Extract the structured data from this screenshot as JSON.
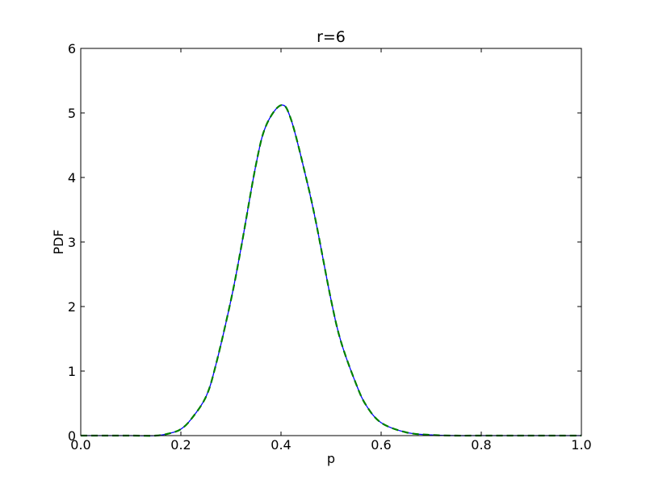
{
  "chart_data": {
    "type": "line",
    "title": "r=6",
    "xlabel": "p",
    "ylabel": "PDF",
    "xlim": [
      0.0,
      1.0
    ],
    "ylim": [
      0,
      6
    ],
    "xticks": [
      "0.0",
      "0.2",
      "0.4",
      "0.6",
      "0.8",
      "1.0"
    ],
    "yticks": [
      "0",
      "1",
      "2",
      "3",
      "4",
      "5",
      "6"
    ],
    "grid": false,
    "legend": "none",
    "x": [
      0.0,
      0.05,
      0.1,
      0.15,
      0.18,
      0.2,
      0.22,
      0.25,
      0.27,
      0.3,
      0.32,
      0.35,
      0.37,
      0.4,
      0.42,
      0.45,
      0.47,
      0.5,
      0.52,
      0.55,
      0.57,
      0.6,
      0.65,
      0.7,
      0.75,
      0.8,
      0.9,
      1.0
    ],
    "series": [
      {
        "style": "solid",
        "color": "#0000ff",
        "values": [
          0.0,
          0.0,
          0.0,
          0.0,
          0.04,
          0.1,
          0.25,
          0.6,
          1.1,
          2.1,
          2.9,
          4.2,
          4.8,
          5.12,
          4.9,
          4.0,
          3.3,
          2.1,
          1.45,
          0.8,
          0.47,
          0.2,
          0.05,
          0.01,
          0.0,
          0.0,
          0.0,
          0.0
        ]
      },
      {
        "style": "dashed",
        "color": "#008000",
        "values": [
          0.0,
          0.0,
          0.0,
          0.0,
          0.04,
          0.1,
          0.25,
          0.6,
          1.1,
          2.1,
          2.9,
          4.2,
          4.8,
          5.12,
          4.9,
          4.0,
          3.3,
          2.1,
          1.45,
          0.8,
          0.47,
          0.2,
          0.05,
          0.01,
          0.0,
          0.0,
          0.0,
          0.0
        ]
      }
    ]
  }
}
